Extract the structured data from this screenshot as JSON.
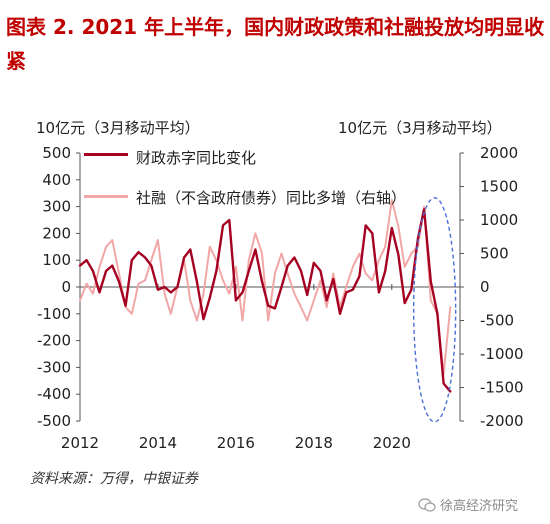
{
  "title": "图表 2.  2021 年上半年，国内财政政策和社融投放均明显收紧",
  "left_unit": "10亿元（3月移动平均）",
  "right_unit": "10亿元（3月移动平均）",
  "source": "资料来源：万得，中银证券",
  "watermark": "徐高经济研究",
  "colors": {
    "deficit": "#a50021",
    "social": "#f2a7a7",
    "highlight": "#4a6fd6",
    "title": "#c00000"
  },
  "chart_data": {
    "type": "line",
    "x_ticks": [
      2012,
      2014,
      2016,
      2018,
      2020
    ],
    "x_range": [
      2012.0,
      2021.75
    ],
    "left_axis": {
      "range": [
        -500,
        500
      ],
      "ticks": [
        -500,
        -400,
        -300,
        -200,
        -100,
        0,
        100,
        200,
        300,
        400,
        500
      ]
    },
    "right_axis": {
      "range": [
        -2000,
        2000
      ],
      "ticks": [
        -2000,
        -1500,
        -1000,
        -500,
        0,
        500,
        1000,
        1500,
        2000
      ]
    },
    "series": [
      {
        "name": "财政赤字同比变化",
        "axis": "left",
        "x": [
          2012.0,
          2012.17,
          2012.33,
          2012.5,
          2012.67,
          2012.83,
          2013.0,
          2013.17,
          2013.33,
          2013.5,
          2013.67,
          2013.83,
          2014.0,
          2014.17,
          2014.33,
          2014.5,
          2014.67,
          2014.83,
          2015.0,
          2015.17,
          2015.33,
          2015.5,
          2015.67,
          2015.83,
          2016.0,
          2016.17,
          2016.33,
          2016.5,
          2016.67,
          2016.83,
          2017.0,
          2017.17,
          2017.33,
          2017.5,
          2017.67,
          2017.83,
          2018.0,
          2018.17,
          2018.33,
          2018.5,
          2018.67,
          2018.83,
          2019.0,
          2019.17,
          2019.33,
          2019.5,
          2019.67,
          2019.83,
          2020.0,
          2020.17,
          2020.33,
          2020.5,
          2020.67,
          2020.83,
          2021.0,
          2021.17,
          2021.33,
          2021.5
        ],
        "values": [
          80,
          100,
          60,
          -20,
          60,
          80,
          20,
          -70,
          100,
          130,
          110,
          80,
          -10,
          0,
          -20,
          0,
          110,
          140,
          20,
          -120,
          -40,
          60,
          230,
          250,
          -50,
          -20,
          60,
          140,
          20,
          -70,
          -80,
          0,
          80,
          110,
          60,
          -30,
          90,
          60,
          -50,
          30,
          -100,
          -20,
          -10,
          40,
          230,
          200,
          -20,
          60,
          220,
          120,
          -60,
          -10,
          180,
          290,
          20,
          -100,
          -360,
          -390
        ]
      },
      {
        "name": "社融（不含政府债券）同比多增（右轴）",
        "axis": "right",
        "x": [
          2012.0,
          2012.17,
          2012.33,
          2012.5,
          2012.67,
          2012.83,
          2013.0,
          2013.17,
          2013.33,
          2013.5,
          2013.67,
          2013.83,
          2014.0,
          2014.17,
          2014.33,
          2014.5,
          2014.67,
          2014.83,
          2015.0,
          2015.17,
          2015.33,
          2015.5,
          2015.67,
          2015.83,
          2016.0,
          2016.17,
          2016.33,
          2016.5,
          2016.67,
          2016.83,
          2017.0,
          2017.17,
          2017.33,
          2017.5,
          2017.67,
          2017.83,
          2018.0,
          2018.17,
          2018.33,
          2018.5,
          2018.67,
          2018.83,
          2019.0,
          2019.17,
          2019.33,
          2019.5,
          2019.67,
          2019.83,
          2020.0,
          2020.17,
          2020.33,
          2020.5,
          2020.67,
          2020.83,
          2021.0,
          2021.17,
          2021.33,
          2021.5
        ],
        "values": [
          -200,
          50,
          -100,
          300,
          600,
          700,
          200,
          -300,
          -400,
          50,
          100,
          400,
          700,
          -100,
          -400,
          0,
          400,
          -200,
          -500,
          -100,
          600,
          400,
          100,
          -100,
          300,
          -500,
          400,
          800,
          500,
          -500,
          200,
          500,
          200,
          -100,
          -300,
          -500,
          -200,
          100,
          -300,
          200,
          -300,
          0,
          300,
          500,
          200,
          100,
          400,
          600,
          1300,
          900,
          300,
          500,
          600,
          1200,
          -200,
          -400,
          -1300,
          -300
        ]
      }
    ],
    "annotation": "dashed-ellipse-2021"
  }
}
